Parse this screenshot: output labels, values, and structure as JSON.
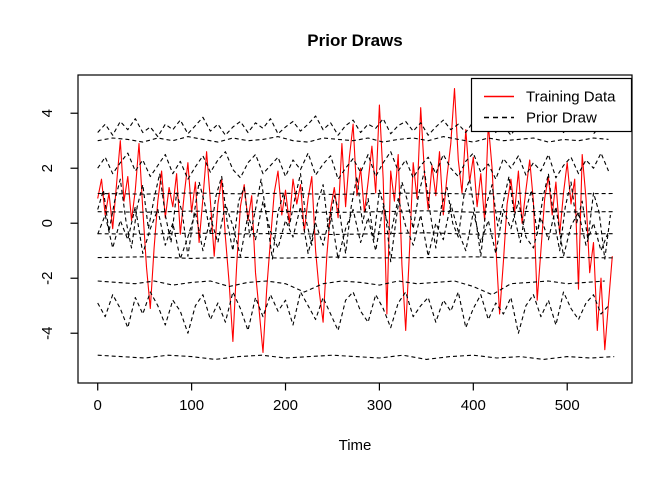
{
  "chart_data": {
    "type": "line",
    "title": "Prior Draws",
    "xlabel": "Time",
    "ylabel": "",
    "xlim": [
      -21,
      569
    ],
    "ylim": [
      -5.81,
      5.39
    ],
    "xticks": [
      0,
      100,
      200,
      300,
      400,
      500
    ],
    "yticks": [
      -4,
      -2,
      0,
      2,
      4
    ],
    "grid": false,
    "colors": {
      "training": "#ff0000",
      "prior": "#000000",
      "background": "#ffffff",
      "axis": "#000000"
    },
    "legend": {
      "position": "topright",
      "entries": [
        {
          "label": "Training Data",
          "color": "#ff0000",
          "dash": false
        },
        {
          "label": "Prior Draw",
          "color": "#000000",
          "dash": true
        }
      ]
    },
    "series": [
      {
        "name": "Training Data",
        "role": "training",
        "color": "#ff0000",
        "dash": false,
        "x0": 0,
        "dx": 4,
        "y": [
          0.9,
          1.6,
          0.3,
          1.1,
          -0.2,
          1.4,
          3.0,
          0.8,
          1.7,
          0.1,
          1.2,
          2.9,
          0.5,
          -1.6,
          -3.1,
          -0.9,
          0.8,
          1.9,
          0.2,
          1.3,
          0.6,
          1.8,
          -0.4,
          1.0,
          2.2,
          0.4,
          1.5,
          -0.7,
          0.9,
          2.6,
          0.8,
          -1.2,
          0.7,
          1.6,
          -0.5,
          -2.2,
          -4.3,
          -1.5,
          0.6,
          1.4,
          0.1,
          1.0,
          -1.8,
          -3.2,
          -4.7,
          -2.4,
          -0.6,
          1.1,
          1.9,
          0.3,
          1.2,
          0.0,
          1.6,
          0.7,
          1.4,
          -0.3,
          0.9,
          1.7,
          -1.0,
          -2.5,
          -3.6,
          -1.2,
          0.5,
          1.3,
          0.2,
          2.9,
          0.6,
          2.4,
          3.6,
          1.0,
          2.0,
          0.4,
          1.5,
          2.8,
          1.1,
          4.3,
          1.6,
          -3.3,
          1.9,
          0.8,
          2.5,
          -1.5,
          -3.9,
          -1.0,
          2.2,
          0.9,
          4.2,
          1.8,
          0.5,
          2.1,
          1.0,
          2.6,
          0.3,
          1.7,
          2.9,
          4.9,
          2.3,
          1.1,
          3.4,
          1.5,
          2.4,
          0.6,
          1.8,
          0.1,
          3.6,
          2.0,
          -0.8,
          -3.3,
          -1.4,
          0.7,
          1.6,
          0.4,
          1.9,
          0.0,
          1.2,
          2.3,
          0.8,
          -2.8,
          -1.0,
          0.9,
          1.7,
          0.3,
          1.5,
          -0.4,
          1.1,
          2.2,
          0.7,
          1.6,
          -2.4,
          2.5,
          0.9,
          -1.8,
          -0.7,
          -3.9,
          -2.0,
          -4.6,
          -2.9,
          -1.2
        ]
      },
      {
        "name": "Prior Draw 1",
        "role": "prior",
        "color": "#000000",
        "dash": true,
        "x0": 0,
        "dx": 8,
        "y": [
          3.3,
          3.6,
          3.2,
          3.7,
          3.4,
          3.8,
          3.3,
          3.5,
          3.15,
          3.6,
          3.4,
          3.75,
          3.25,
          3.55,
          3.85,
          3.35,
          3.6,
          3.2,
          3.5,
          3.7,
          3.3,
          3.65,
          3.45,
          3.8,
          3.25,
          3.5,
          3.7,
          3.35,
          3.6,
          3.9,
          3.4,
          3.65,
          3.2,
          3.55,
          3.75,
          3.3,
          3.6,
          3.45,
          3.8,
          3.25,
          3.55,
          3.7,
          3.35,
          3.65,
          3.2,
          3.5,
          3.75,
          3.4,
          3.6,
          3.3,
          3.7,
          3.45,
          3.8,
          3.3,
          3.55,
          3.2,
          3.6,
          3.75,
          3.35,
          3.65,
          3.5,
          3.8,
          3.3,
          3.6,
          3.4,
          3.7,
          3.25,
          3.55,
          3.45
        ]
      },
      {
        "name": "Prior Draw 2",
        "role": "prior",
        "color": "#000000",
        "dash": true,
        "x0": 0,
        "dx": 16,
        "y": [
          3.0,
          3.1,
          3.05,
          2.95,
          3.1,
          3.0,
          3.15,
          3.05,
          2.95,
          3.1,
          3.0,
          3.05,
          3.15,
          3.0,
          2.95,
          3.1,
          3.05,
          3.0,
          3.1,
          2.95,
          3.05,
          3.1,
          3.0,
          3.15,
          3.05,
          2.95,
          3.1,
          3.0,
          3.05,
          3.1,
          2.95,
          3.05,
          3.0,
          3.1,
          3.05
        ]
      },
      {
        "name": "Prior Draw 3",
        "role": "prior",
        "color": "#000000",
        "dash": true,
        "x0": 0,
        "dx": 8,
        "y": [
          2.0,
          2.4,
          1.8,
          2.2,
          2.55,
          1.9,
          2.3,
          1.7,
          2.1,
          2.5,
          1.8,
          2.25,
          1.6,
          2.05,
          2.45,
          1.85,
          2.3,
          2.6,
          1.95,
          1.65,
          2.2,
          2.5,
          1.8,
          2.1,
          2.4,
          1.7,
          2.3,
          1.95,
          2.55,
          1.75,
          2.15,
          2.45,
          1.6,
          2.0,
          2.35,
          1.85,
          2.5,
          1.7,
          2.2,
          2.6,
          1.9,
          2.3,
          1.65,
          2.1,
          2.4,
          1.8,
          2.5,
          2.0,
          1.7,
          2.25,
          2.55,
          1.85,
          2.15,
          1.6,
          2.35,
          2.0,
          2.45,
          1.75,
          2.2,
          1.9,
          2.5,
          1.65,
          2.1,
          2.4,
          1.8,
          2.3,
          2.0,
          2.55,
          1.9
        ]
      },
      {
        "name": "Prior Draw 4",
        "role": "prior",
        "color": "#000000",
        "dash": true,
        "x0": 0,
        "dx": 50,
        "y": [
          1.08,
          1.06,
          1.1,
          1.07,
          1.09,
          1.05,
          1.08,
          1.1,
          1.06,
          1.09,
          1.07,
          1.08
        ]
      },
      {
        "name": "Prior Draw 5",
        "role": "prior",
        "color": "#000000",
        "dash": true,
        "x0": 0,
        "dx": 6,
        "y": [
          0.5,
          1.2,
          -0.3,
          0.8,
          1.6,
          0.1,
          -0.9,
          0.6,
          1.4,
          -0.2,
          0.9,
          1.8,
          0.3,
          -0.7,
          1.1,
          0.4,
          -1.2,
          0.2,
          1.5,
          0.7,
          -0.4,
          1.0,
          1.7,
          0.0,
          -1.0,
          0.8,
          1.3,
          -0.5,
          0.5,
          1.6,
          0.2,
          -1.3,
          0.4,
          1.1,
          -0.1,
          0.9,
          1.8,
          0.1,
          -0.8,
          0.7,
          1.4,
          -0.3,
          1.0,
          0.3,
          -1.1,
          0.6,
          1.7,
          0.0,
          0.9,
          -0.6,
          1.2,
          0.5,
          -1.4,
          0.2,
          1.5,
          0.8,
          -0.2,
          1.1,
          1.9,
          0.4,
          -0.9,
          0.6,
          1.3,
          0.0,
          -0.5,
          1.0,
          1.6,
          0.3,
          -1.2,
          0.7,
          1.4,
          -0.1,
          0.8,
          1.7,
          0.2,
          -0.7,
          0.5,
          1.2,
          -0.4,
          0.9,
          1.8,
          0.1,
          -1.0,
          0.6,
          1.5,
          0.0,
          0.8,
          -0.6,
          1.1,
          0.4,
          -1.3,
          0.3
        ]
      },
      {
        "name": "Prior Draw 6",
        "role": "prior",
        "color": "#000000",
        "dash": true,
        "x0": 0,
        "dx": 8,
        "y": [
          -0.4,
          0.3,
          -0.9,
          0.1,
          -0.6,
          0.6,
          -1.1,
          -0.2,
          0.5,
          -0.8,
          0.0,
          -1.3,
          -0.5,
          0.4,
          -1.0,
          0.2,
          -0.7,
          0.7,
          -0.1,
          -1.2,
          0.3,
          -0.6,
          0.8,
          -0.3,
          -0.9,
          0.1,
          -0.5,
          0.6,
          -1.1,
          0.0,
          -0.8,
          0.4,
          -1.3,
          -0.2,
          0.5,
          -0.7,
          0.2,
          -1.0,
          0.6,
          -0.4,
          0.9,
          -0.1,
          -0.8,
          0.3,
          -1.2,
          0.0,
          -0.6,
          0.7,
          -0.3,
          -1.0,
          0.4,
          -0.7,
          0.1,
          -1.1,
          0.5,
          -0.2,
          0.8,
          -0.5,
          -0.9,
          0.2,
          -0.6,
          0.6,
          -1.2,
          -0.1,
          0.4,
          -0.8,
          0.0,
          -1.0,
          -0.3
        ]
      },
      {
        "name": "Prior Draw 7",
        "role": "prior",
        "color": "#000000",
        "dash": true,
        "x0": 0,
        "dx": 50,
        "y": [
          0.42,
          0.4,
          0.44,
          0.41,
          0.43,
          0.39,
          0.42,
          0.45,
          0.4,
          0.43,
          0.41,
          0.42
        ]
      },
      {
        "name": "Prior Draw 8",
        "role": "prior",
        "color": "#000000",
        "dash": true,
        "x0": 0,
        "dx": 50,
        "y": [
          -0.38,
          -0.4,
          -0.36,
          -0.39,
          -0.37,
          -0.41,
          -0.38,
          -0.35,
          -0.4,
          -0.37,
          -0.39,
          -0.38
        ]
      },
      {
        "name": "Prior Draw 9",
        "role": "prior",
        "color": "#000000",
        "dash": true,
        "x0": 0,
        "dx": 50,
        "y": [
          -1.25,
          -1.22,
          -1.28,
          -1.24,
          -1.27,
          -1.23,
          -1.26,
          -1.25,
          -1.22,
          -1.27,
          -1.24,
          -1.26
        ]
      },
      {
        "name": "Prior Draw 10",
        "role": "prior",
        "color": "#000000",
        "dash": true,
        "x0": 0,
        "dx": 20,
        "y": [
          -2.1,
          -2.15,
          -2.2,
          -2.1,
          -2.25,
          -2.15,
          -2.1,
          -2.3,
          -2.15,
          -2.1,
          -2.2,
          -2.5,
          -2.2,
          -2.1,
          -2.15,
          -2.25,
          -2.1,
          -2.2,
          -2.15,
          -2.1,
          -2.3,
          -2.6,
          -2.2,
          -2.15,
          -2.1,
          -2.2,
          -2.15,
          -2.1
        ]
      },
      {
        "name": "Prior Draw 11",
        "role": "prior",
        "color": "#000000",
        "dash": true,
        "x0": 0,
        "dx": 8,
        "y": [
          -2.9,
          -3.4,
          -2.6,
          -3.1,
          -3.8,
          -2.7,
          -3.3,
          -2.5,
          -3.0,
          -3.7,
          -2.8,
          -3.2,
          -4.0,
          -3.0,
          -2.6,
          -3.5,
          -2.9,
          -3.6,
          -2.5,
          -3.1,
          -3.9,
          -2.7,
          -3.4,
          -2.6,
          -3.2,
          -2.8,
          -3.7,
          -2.5,
          -3.0,
          -3.5,
          -2.7,
          -3.3,
          -3.9,
          -2.8,
          -2.5,
          -3.2,
          -3.6,
          -2.6,
          -3.1,
          -3.8,
          -2.9,
          -2.5,
          -3.4,
          -3.0,
          -2.7,
          -3.6,
          -2.8,
          -3.2,
          -2.5,
          -3.8,
          -3.1,
          -2.6,
          -3.5,
          -2.9,
          -3.3,
          -2.7,
          -4.0,
          -3.0,
          -2.6,
          -3.4,
          -2.8,
          -3.7,
          -2.5,
          -3.1,
          -3.5,
          -2.9,
          -2.6,
          -3.3,
          -3.0
        ]
      },
      {
        "name": "Prior Draw 12",
        "role": "prior",
        "color": "#000000",
        "dash": true,
        "x0": 0,
        "dx": 25,
        "y": [
          -4.8,
          -4.85,
          -4.9,
          -4.8,
          -4.85,
          -4.95,
          -4.85,
          -4.8,
          -4.9,
          -4.85,
          -4.8,
          -4.85,
          -4.9,
          -4.8,
          -4.95,
          -4.85,
          -4.8,
          -4.9,
          -4.85,
          -4.95,
          -4.85,
          -4.9,
          -4.85
        ]
      }
    ]
  }
}
